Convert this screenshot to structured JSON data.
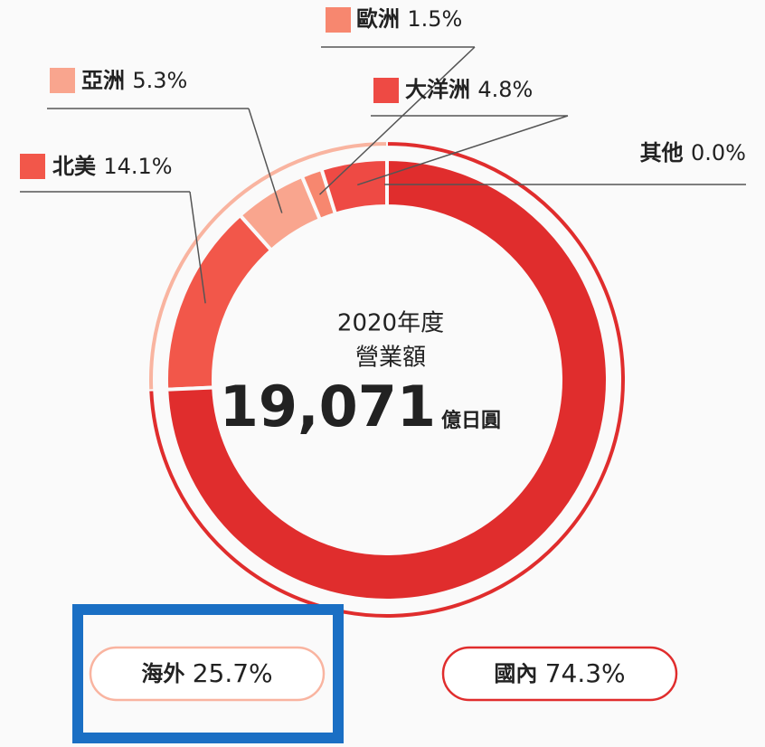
{
  "chart_data": {
    "type": "pie",
    "center_lines": [
      "2020年度",
      "營業額"
    ],
    "total": "19,071",
    "total_unit": "億日圓",
    "categories": [
      "北美",
      "亞洲",
      "歐洲",
      "大洋洲",
      "其他"
    ],
    "values": [
      14.1,
      5.3,
      1.5,
      4.8,
      0.0
    ],
    "value_labels": [
      "14.1%",
      "5.3%",
      "1.5%",
      "4.8%",
      "0.0%"
    ],
    "colors": [
      "#f2574a",
      "#f9a58e",
      "#f7876f",
      "#ee4a44",
      "#e02d2d"
    ],
    "outer": {
      "categories": [
        "海外",
        "國內"
      ],
      "values": [
        25.7,
        74.3
      ],
      "value_labels": [
        "25.7%",
        "74.3%"
      ],
      "colors": [
        "#f9b4a0",
        "#e02d2d"
      ]
    }
  }
}
